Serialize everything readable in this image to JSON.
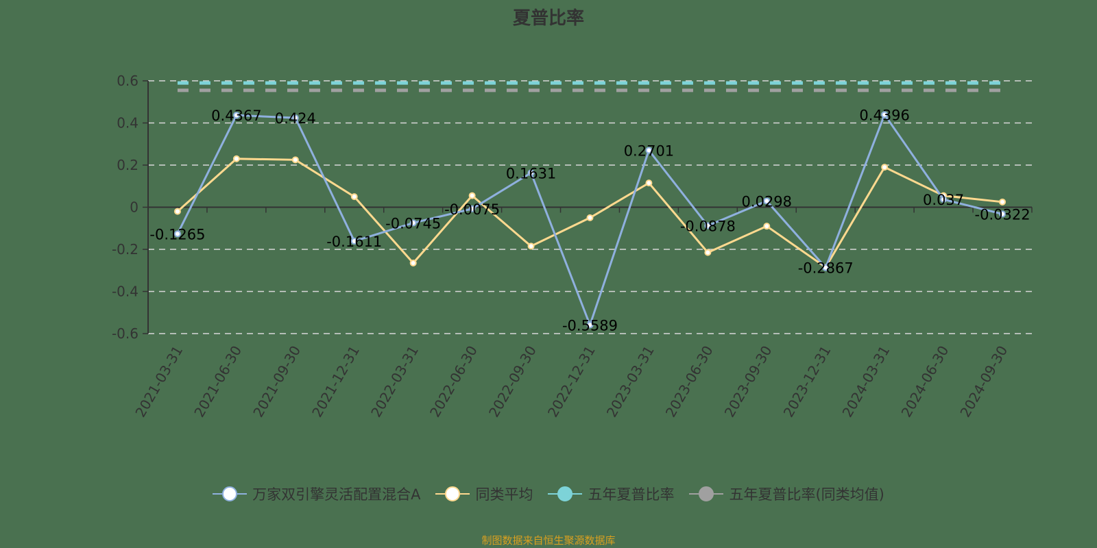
{
  "title": "夏普比率",
  "source": "制图数据来自恒生聚源数据库",
  "legend": [
    {
      "label": "万家双引擎灵活配置混合A",
      "color": "#8fb0de",
      "fill": "#ffffff"
    },
    {
      "label": "同类平均",
      "color": "#ffd98f",
      "fill": "#ffffff"
    },
    {
      "label": "五年夏普比率",
      "color": "#7dd3d8",
      "fill": "#7dd3d8"
    },
    {
      "label": "五年夏普比率(同类均值)",
      "color": "#a0a0a0",
      "fill": "#a0a0a0"
    }
  ],
  "chart_data": {
    "type": "line",
    "title": "夏普比率",
    "xlabel": "",
    "ylabel": "",
    "ylim": [
      -0.6,
      0.6
    ],
    "yticks": [
      0.6,
      0.4,
      0.2,
      0,
      -0.2,
      -0.4,
      -0.6
    ],
    "grid": true,
    "legend_position": "bottom",
    "categories": [
      "2021-03-31",
      "2021-06-30",
      "2021-09-30",
      "2021-12-31",
      "2022-03-31",
      "2022-06-30",
      "2022-09-30",
      "2022-12-31",
      "2023-03-31",
      "2023-06-30",
      "2023-09-30",
      "2023-12-31",
      "2024-03-31",
      "2024-06-30",
      "2024-09-30"
    ],
    "series": [
      {
        "name": "万家双引擎灵活配置混合A",
        "color": "#8fb0de",
        "values": [
          -0.1265,
          0.4367,
          0.424,
          -0.1611,
          -0.0745,
          -0.0075,
          0.1631,
          -0.5589,
          0.2701,
          -0.0878,
          0.0298,
          -0.2867,
          0.4396,
          0.037,
          -0.0322
        ],
        "labels": [
          "-0.1265",
          "0.4367",
          "0.424",
          "-0.1611",
          "-0.0745",
          "-0.0075",
          "0.1631",
          "-0.5589",
          "0.2701",
          "-0.0878",
          "0.0298",
          "-0.2867",
          "0.4396",
          "0.037",
          "-0.0322"
        ]
      },
      {
        "name": "同类平均",
        "color": "#ffd98f",
        "values": [
          -0.02,
          0.23,
          0.225,
          0.05,
          -0.265,
          0.055,
          -0.185,
          -0.05,
          0.115,
          -0.215,
          -0.09,
          -0.285,
          0.19,
          0.055,
          0.025
        ]
      },
      {
        "name": "五年夏普比率",
        "color": "#7dd3d8",
        "type": "dashed-reference",
        "value": 0.59
      },
      {
        "name": "五年夏普比率(同类均值)",
        "color": "#a0a0a0",
        "type": "dashed-reference",
        "value": 0.555
      }
    ]
  }
}
